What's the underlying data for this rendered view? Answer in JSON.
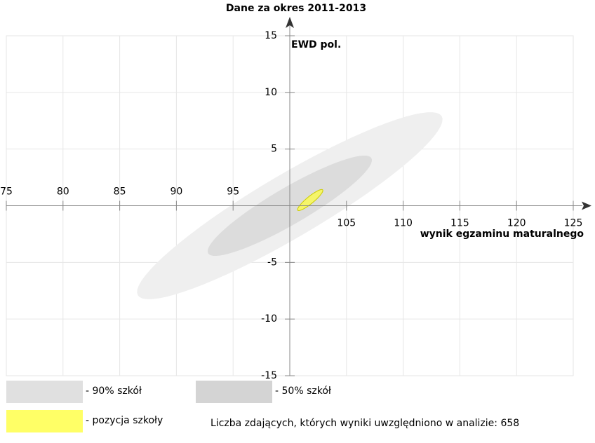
{
  "chart_data": {
    "type": "ellipse",
    "title": "Dane za okres 2011-2013",
    "x_label": "wynik egzaminu maturalnego",
    "y_label": "EWD pol.",
    "xlim": [
      75,
      125
    ],
    "ylim": [
      -15,
      15
    ],
    "xticks": [
      75,
      80,
      85,
      90,
      95,
      105,
      110,
      115,
      120,
      125
    ],
    "yticks": [
      -15,
      -10,
      -5,
      5,
      10,
      15
    ],
    "grid": true,
    "series": [
      {
        "name": "- 90% szkół",
        "color": "#efefef",
        "center": [
          100,
          0
        ],
        "axis_a": [
          13.4,
          7.9
        ],
        "axis_b": [
          1.4,
          -2.4
        ]
      },
      {
        "name": "- 50% szkół",
        "color": "#dcdcdc",
        "center": [
          100,
          0
        ],
        "axis_a": [
          7.2,
          4.2
        ],
        "axis_b": [
          0.8,
          -1.4
        ]
      },
      {
        "name": "- pozycja szkoły",
        "color": "#f5f56a",
        "center": [
          101.8,
          0.5
        ],
        "axis_a": [
          1.1,
          0.9
        ],
        "axis_b": [
          0.2,
          -0.24
        ]
      }
    ],
    "note": "Liczba zdających, których wyniki uwzględniono w analizie: 658"
  }
}
